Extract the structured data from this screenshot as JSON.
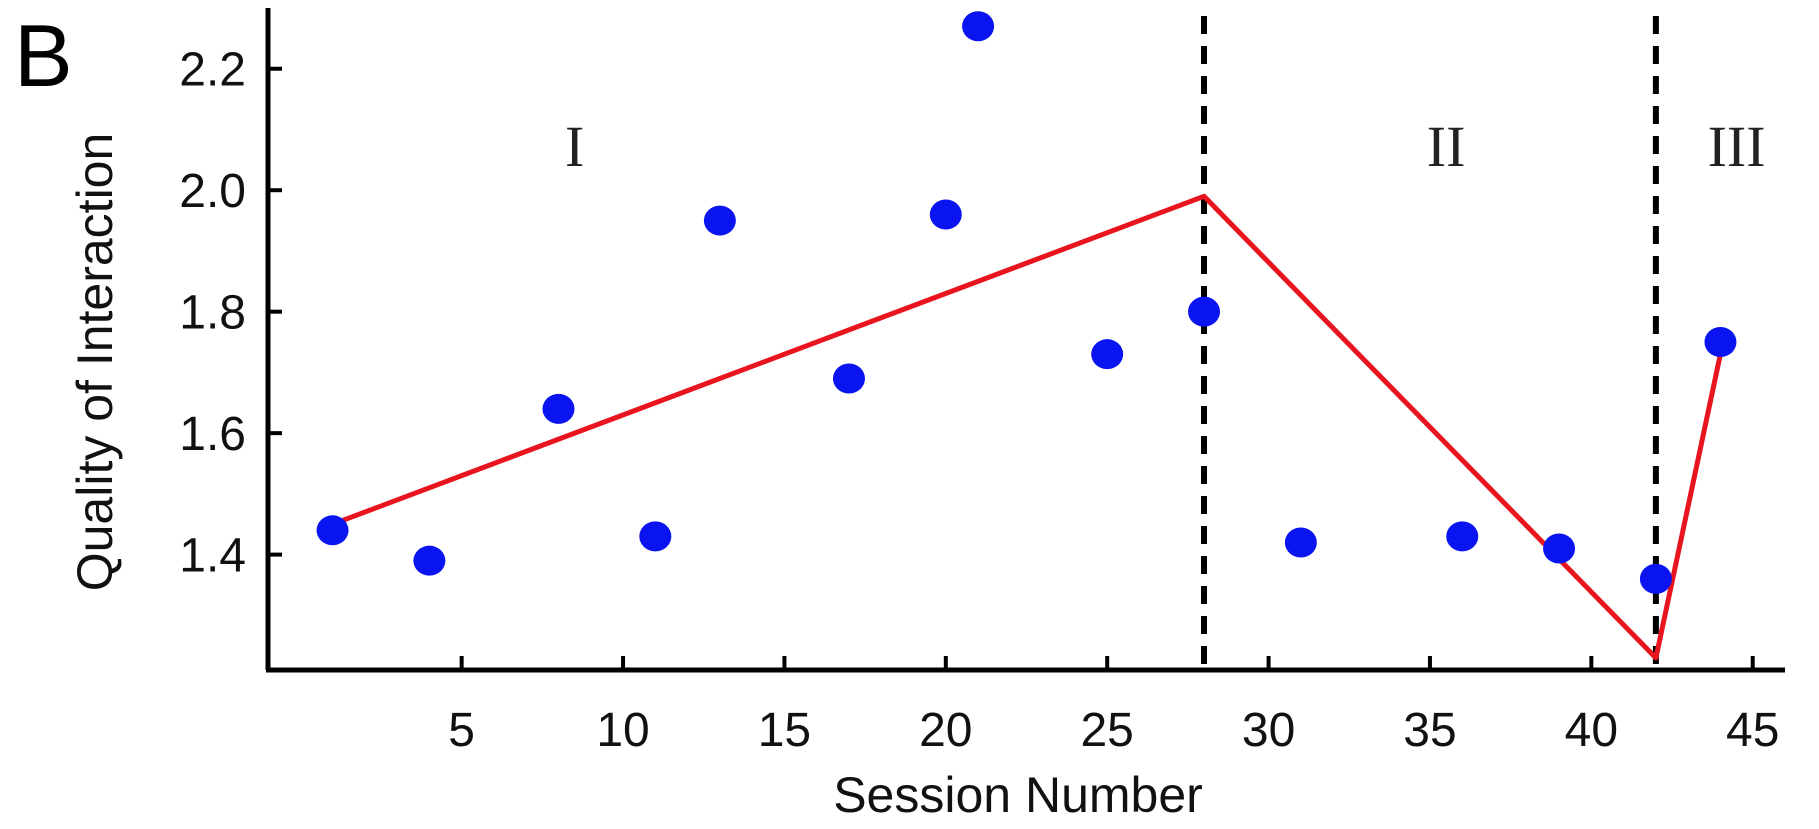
{
  "chart_data": {
    "type": "scatter",
    "panel_label": "B",
    "xlabel": "Session Number",
    "ylabel": "Quality of Interaction",
    "xlim": [
      -1,
      46
    ],
    "ylim": [
      1.21,
      2.3
    ],
    "x_ticks": [
      5,
      10,
      15,
      20,
      25,
      30,
      35,
      40,
      45
    ],
    "y_ticks": [
      1.4,
      1.6,
      1.8,
      2.0,
      2.2
    ],
    "y_tick_labels": [
      "1.4",
      "1.6",
      "1.8",
      "2.0",
      "2.2"
    ],
    "grid": false,
    "series": [
      {
        "kind": "points",
        "color": "#0a14f0",
        "points": [
          {
            "x": 1,
            "y": 1.44
          },
          {
            "x": 4,
            "y": 1.39
          },
          {
            "x": 8,
            "y": 1.64
          },
          {
            "x": 11,
            "y": 1.43
          },
          {
            "x": 13,
            "y": 1.95
          },
          {
            "x": 17,
            "y": 1.69
          },
          {
            "x": 20,
            "y": 1.96
          },
          {
            "x": 21,
            "y": 2.27
          },
          {
            "x": 25,
            "y": 1.73
          },
          {
            "x": 28,
            "y": 1.8
          },
          {
            "x": 31,
            "y": 1.42
          },
          {
            "x": 36,
            "y": 1.43
          },
          {
            "x": 39,
            "y": 1.41
          },
          {
            "x": 42,
            "y": 1.36
          },
          {
            "x": 44,
            "y": 1.75
          }
        ]
      },
      {
        "kind": "line",
        "color": "#e8141e",
        "points": [
          {
            "x": 1,
            "y": 1.45
          },
          {
            "x": 28,
            "y": 1.99
          },
          {
            "x": 42,
            "y": 1.23
          },
          {
            "x": 44,
            "y": 1.73
          }
        ]
      }
    ],
    "dividers": [
      28,
      42
    ],
    "regions": [
      {
        "label": "I",
        "x": 8.5,
        "y": 2.04
      },
      {
        "label": "II",
        "x": 35.5,
        "y": 2.04
      },
      {
        "label": "III",
        "x": 44.5,
        "y": 2.04
      }
    ]
  }
}
